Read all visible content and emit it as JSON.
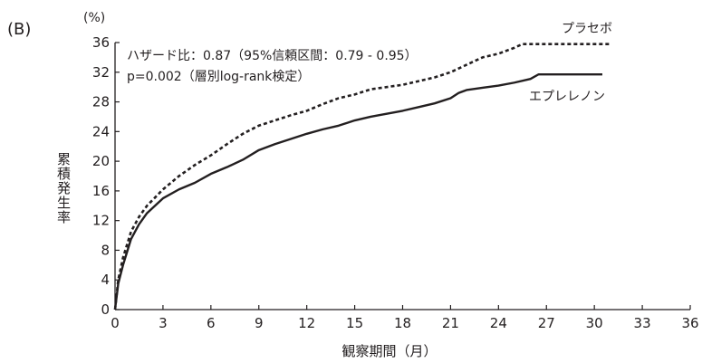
{
  "panel_label": "(B)",
  "chart_data": {
    "type": "line",
    "ylabel": "累積発生率",
    "yunit": "(%)",
    "xlabel": "観察期間（月）",
    "xlim": [
      0,
      36
    ],
    "ylim": [
      0,
      36
    ],
    "xticks": [
      0,
      3,
      6,
      9,
      12,
      15,
      18,
      21,
      24,
      27,
      30,
      33,
      36
    ],
    "yticks": [
      0,
      4,
      8,
      12,
      16,
      20,
      24,
      28,
      32,
      36
    ],
    "grid": false,
    "annotations": [
      "ハザード比：0.87（95%信頼区間：0.79 - 0.95）",
      "p=0.002（層別log-rank検定）"
    ],
    "series": [
      {
        "name": "プラセボ",
        "style": "dashed",
        "x": [
          0,
          0.2,
          0.5,
          1,
          1.5,
          2,
          3,
          4,
          5,
          6,
          7,
          8,
          9,
          10,
          11,
          12,
          13,
          14,
          15,
          16,
          17,
          18,
          19,
          20,
          21,
          22,
          23,
          24,
          25,
          25.5,
          26,
          27,
          28,
          29,
          30,
          31
        ],
        "values": [
          0,
          4,
          7,
          10.5,
          12.5,
          14,
          16.2,
          18,
          19.5,
          20.8,
          22.3,
          23.7,
          24.8,
          25.5,
          26.2,
          26.8,
          27.7,
          28.5,
          29,
          29.7,
          30,
          30.3,
          30.8,
          31.3,
          32,
          33,
          34,
          34.5,
          35.3,
          35.8,
          35.8,
          35.8,
          35.8,
          35.8,
          35.8,
          35.8
        ]
      },
      {
        "name": "エプレレノン",
        "style": "solid",
        "x": [
          0,
          0.2,
          0.5,
          1,
          1.5,
          2,
          3,
          4,
          5,
          6,
          7,
          8,
          9,
          10,
          11,
          12,
          13,
          14,
          15,
          16,
          17,
          18,
          19,
          20,
          21,
          21.5,
          22,
          23,
          24,
          25,
          26,
          26.5,
          27,
          28,
          29,
          30,
          30.5
        ],
        "values": [
          0,
          3.5,
          6,
          9.5,
          11.5,
          13,
          15,
          16.2,
          17.1,
          18.3,
          19.2,
          20.2,
          21.5,
          22.3,
          23,
          23.7,
          24.3,
          24.8,
          25.5,
          26,
          26.4,
          26.8,
          27.3,
          27.8,
          28.5,
          29.2,
          29.6,
          29.9,
          30.2,
          30.6,
          31.1,
          31.7,
          31.7,
          31.7,
          31.7,
          31.7,
          31.7
        ]
      }
    ]
  }
}
